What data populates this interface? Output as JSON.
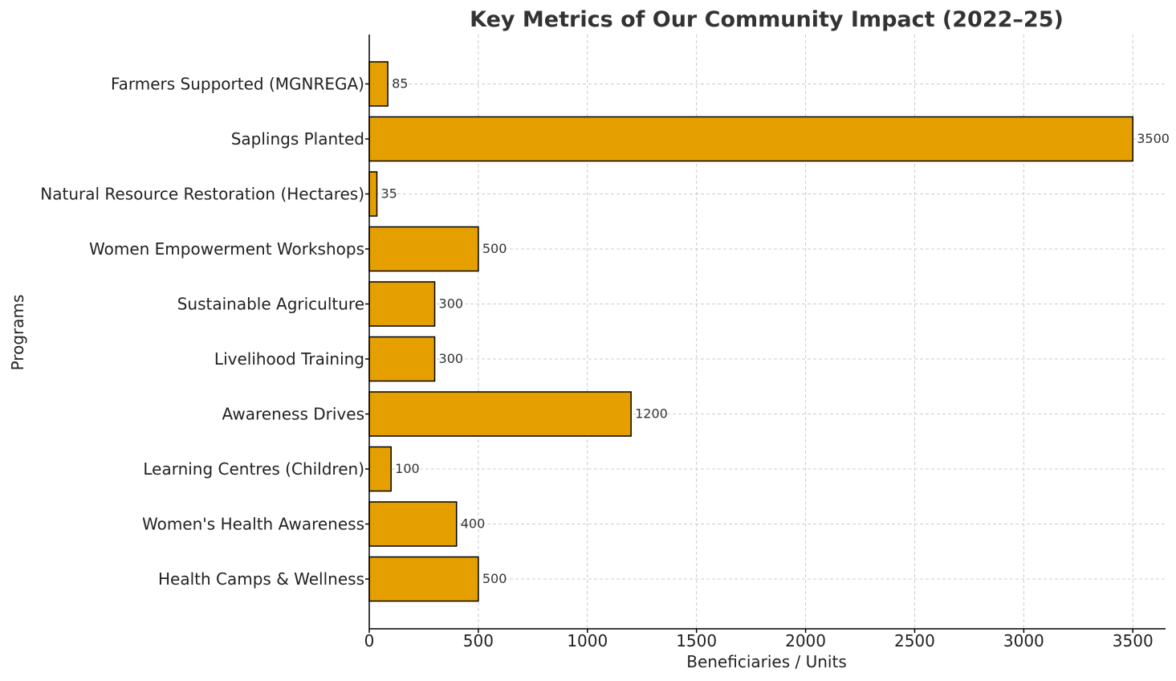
{
  "chart_data": {
    "type": "bar",
    "orientation": "horizontal",
    "title": "Key Metrics of Our Community Impact (2022–25)",
    "xlabel": "Beneficiaries / Units",
    "ylabel": "Programs",
    "categories": [
      "Farmers Supported (MGNREGA)",
      "Saplings Planted",
      "Natural Resource Restoration (Hectares)",
      "Women Empowerment Workshops",
      "Sustainable Agriculture",
      "Livelihood Training",
      "Awareness Drives",
      "Learning Centres (Children)",
      "Women's Health Awareness",
      "Health Camps & Wellness"
    ],
    "values": [
      85,
      3500,
      35,
      500,
      300,
      300,
      1200,
      100,
      400,
      500
    ],
    "xlim": [
      0,
      3650
    ],
    "xticks": [
      0,
      500,
      1000,
      1500,
      2000,
      2500,
      3000,
      3500
    ],
    "grid": true,
    "bar_color": "#E5A000",
    "edge_color": "#000000"
  }
}
